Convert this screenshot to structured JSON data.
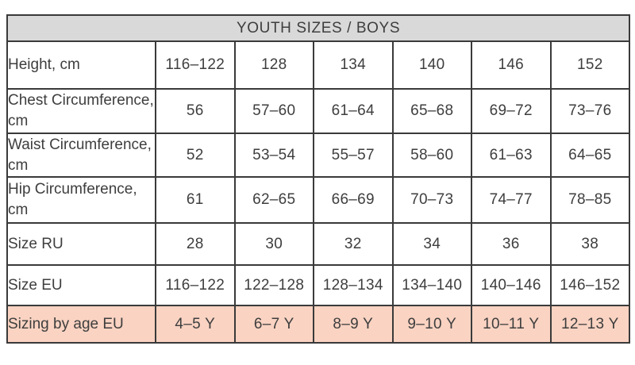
{
  "chart_data": {
    "type": "table",
    "title": "YOUTH SIZES / BOYS",
    "columns": [
      "label",
      "col1",
      "col2",
      "col3",
      "col4",
      "col5",
      "col6"
    ],
    "rows": [
      {
        "label": "Height, cm",
        "values": [
          "116–122",
          "128",
          "134",
          "140",
          "146",
          "152"
        ]
      },
      {
        "label": "Chest Circumference, cm",
        "values": [
          "56",
          "57–60",
          "61–64",
          "65–68",
          "69–72",
          "73–76"
        ]
      },
      {
        "label": "Waist Circumference, cm",
        "values": [
          "52",
          "53–54",
          "55–57",
          "58–60",
          "61–63",
          "64–65"
        ]
      },
      {
        "label": "Hip Circumference, cm",
        "values": [
          "61",
          "62–65",
          "66–69",
          "70–73",
          "74–77",
          "78–85"
        ]
      },
      {
        "label": "Size RU",
        "values": [
          "28",
          "30",
          "32",
          "34",
          "36",
          "38"
        ]
      },
      {
        "label": "Size EU",
        "values": [
          "116–122",
          "122–128",
          "128–134",
          "134–140",
          "140–146",
          "146–152"
        ]
      },
      {
        "label": "Sizing by age EU",
        "values": [
          "4–5 Y",
          "6–7 Y",
          "8–9 Y",
          "9–10 Y",
          "10–11 Y",
          "12–13 Y"
        ],
        "highlighted": true
      }
    ],
    "colors": {
      "title_background": "#d9d9d9",
      "highlight_background": "#fad3c2",
      "border": "#3a3a3a",
      "text": "#3e3e3e"
    },
    "layout": {
      "grid": true,
      "title_position": "top-spanning-row",
      "highlight_row": "Sizing by age EU"
    }
  }
}
